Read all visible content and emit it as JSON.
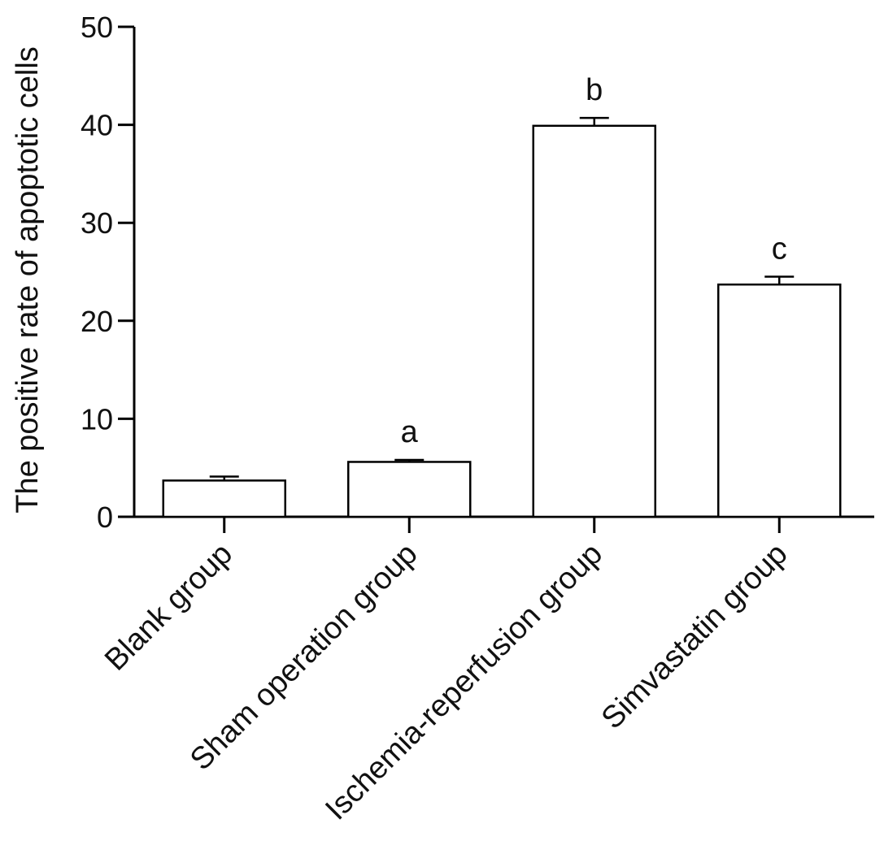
{
  "chart_data": {
    "type": "bar",
    "title": "",
    "xlabel": "",
    "ylabel": "The positive rate of apoptotic cells",
    "ylim": [
      0,
      50
    ],
    "yticks": [
      0,
      10,
      20,
      30,
      40,
      50
    ],
    "grid": false,
    "legend": "none",
    "categories": [
      "Blank group",
      "Sham operation group",
      "Ischemia-reperfusion group",
      "Simvastatin group"
    ],
    "values": [
      3.7,
      5.6,
      39.9,
      23.7
    ],
    "error": [
      0.4,
      0.2,
      0.8,
      0.8
    ],
    "annotations": [
      "",
      "a",
      "b",
      "c"
    ],
    "bar_fill": "#ffffff",
    "bar_stroke": "#000000"
  }
}
